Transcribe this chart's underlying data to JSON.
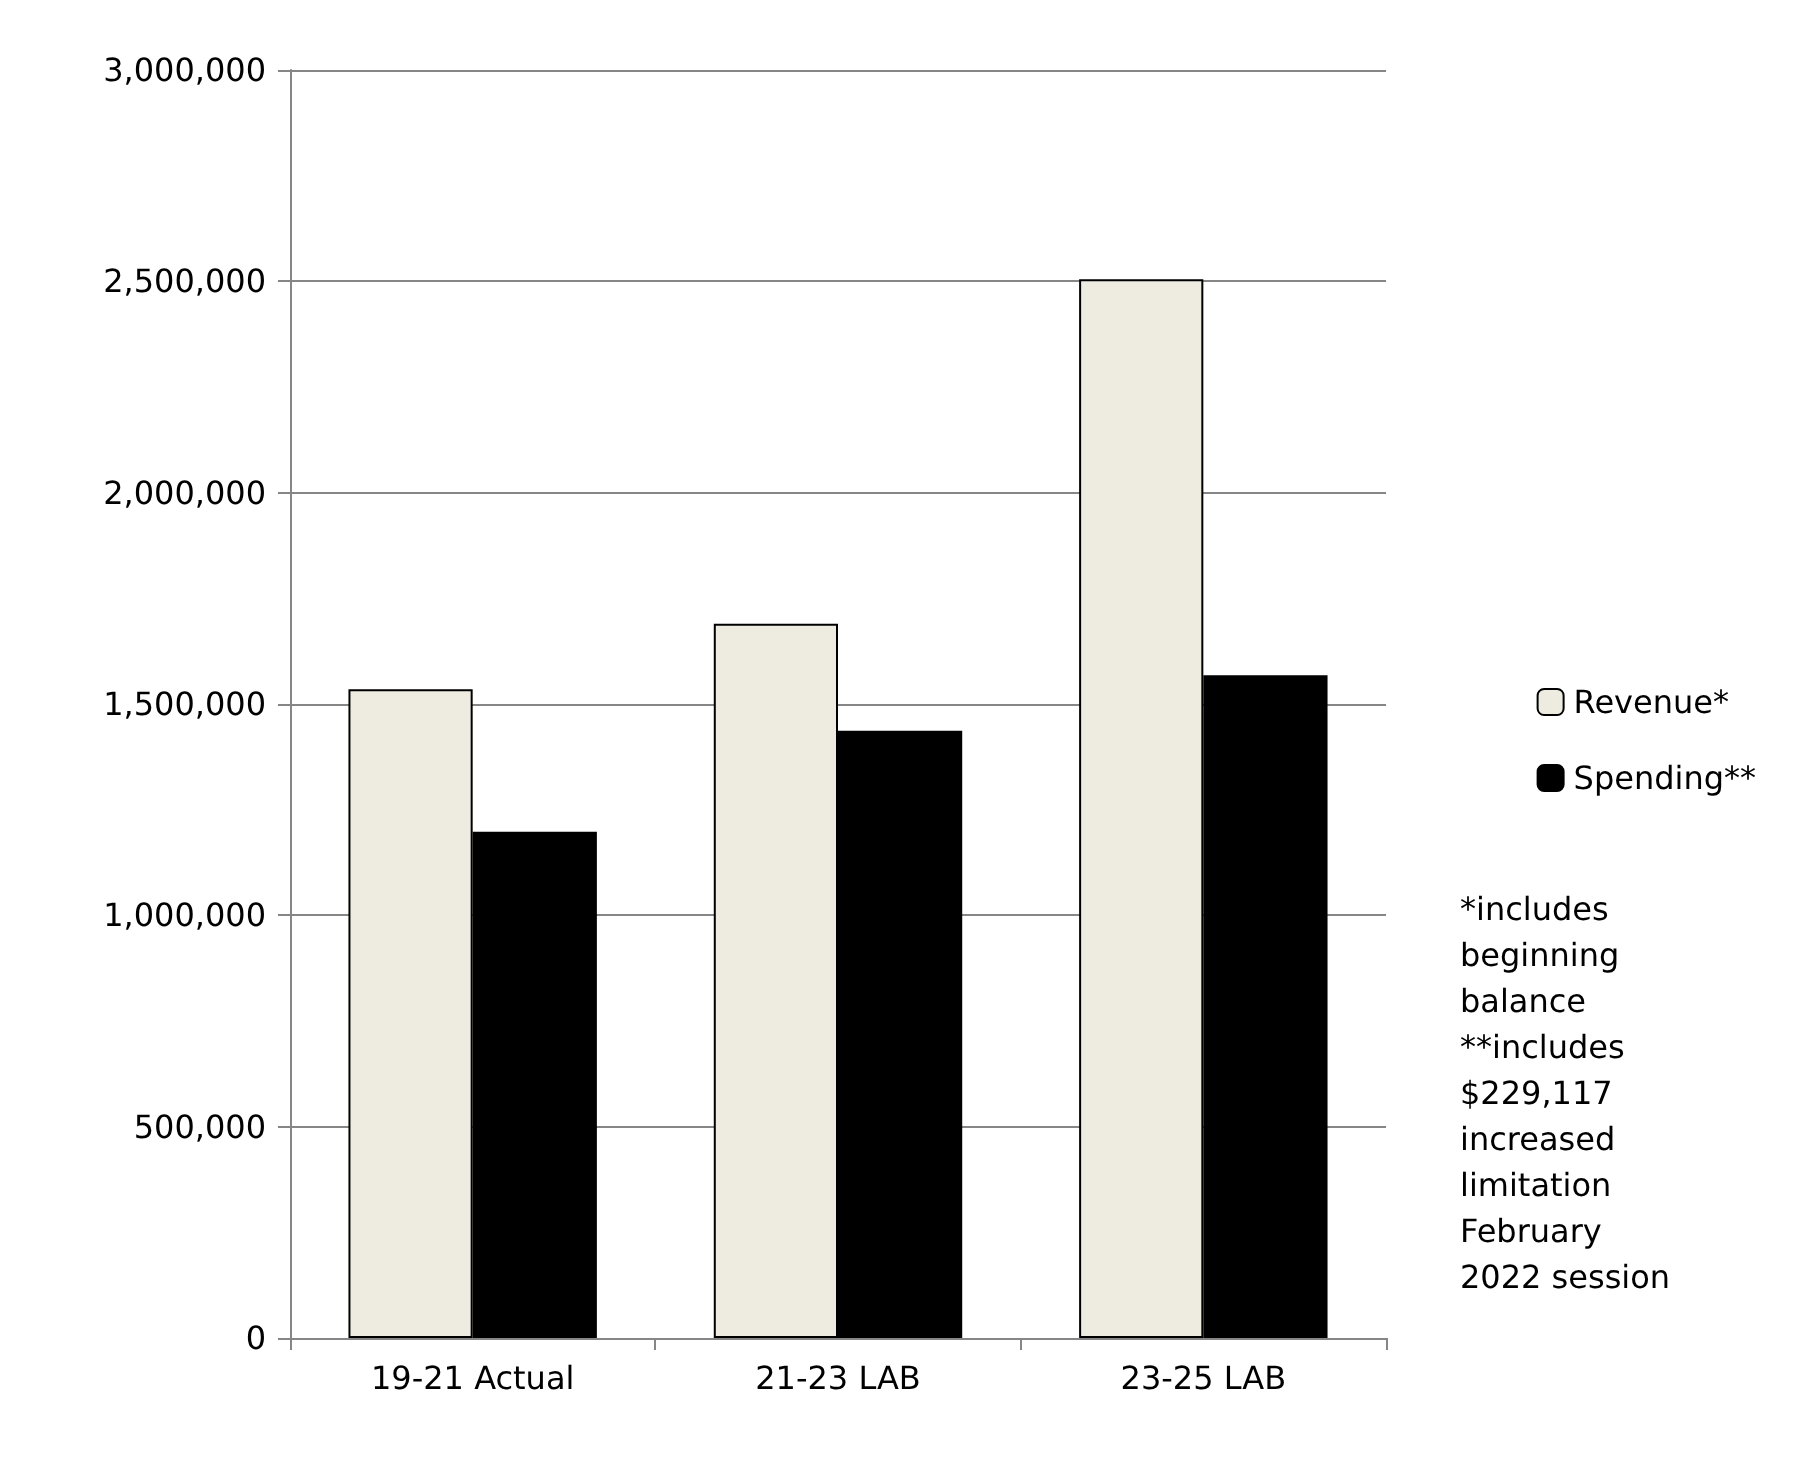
{
  "chart_data": {
    "type": "bar",
    "categories": [
      "19-21 Actual",
      "21-23 LAB",
      "23-25 LAB"
    ],
    "series": [
      {
        "name": "Revenue*",
        "color": "#eeece1",
        "values": [
          1535000,
          1690000,
          2505000
        ]
      },
      {
        "name": "Spending**",
        "color": "#000000",
        "values": [
          1198000,
          1437000,
          1568000
        ]
      }
    ],
    "ylim": [
      0,
      3000000
    ],
    "yticks": [
      {
        "value": 0,
        "label": "0"
      },
      {
        "value": 500000,
        "label": "500,000"
      },
      {
        "value": 1000000,
        "label": "1,000,000"
      },
      {
        "value": 1500000,
        "label": "1,500,000"
      },
      {
        "value": 2000000,
        "label": "2,000,000"
      },
      {
        "value": 2500000,
        "label": "2,500,000"
      },
      {
        "value": 3000000,
        "label": "3,000,000"
      }
    ],
    "grid": "y",
    "legend": "right",
    "annotations": [
      "*includes beginning balance",
      "**includes $229,117 increased limitation February 2022 session"
    ]
  }
}
